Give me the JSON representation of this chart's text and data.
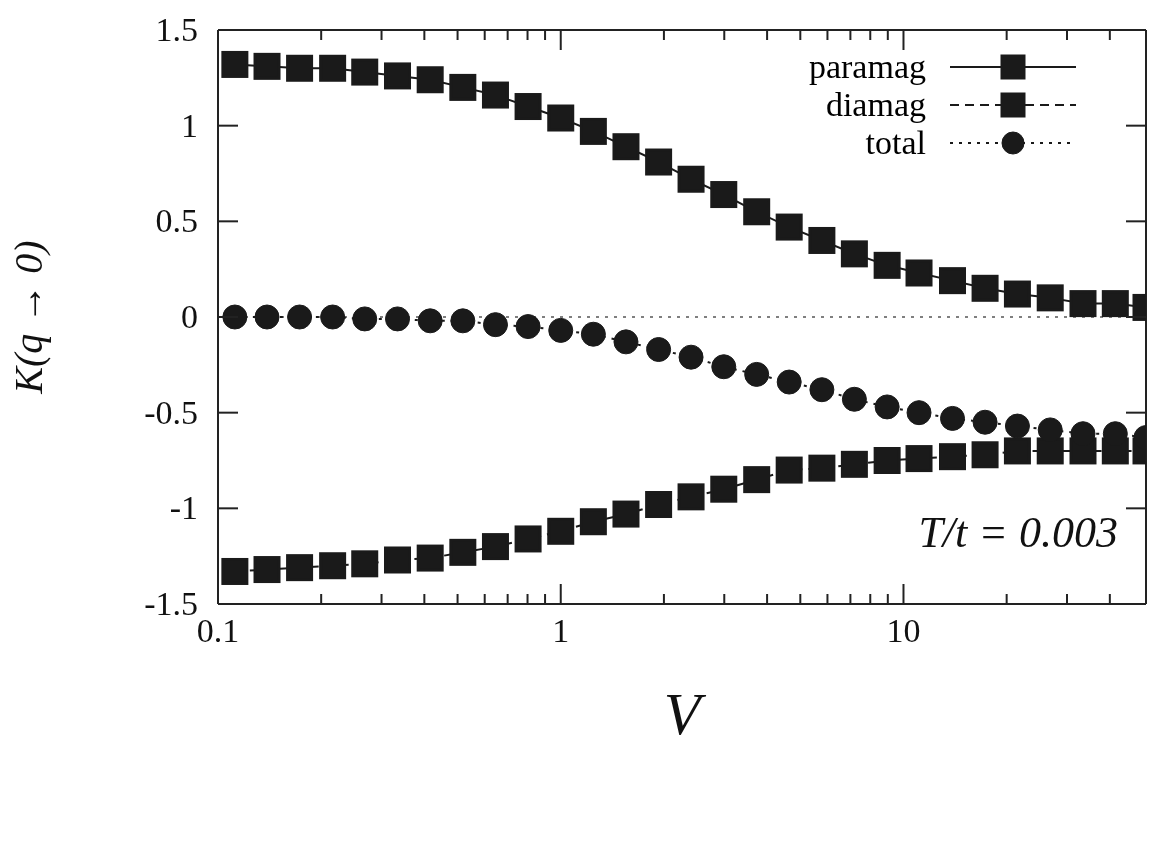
{
  "chart_data": {
    "type": "line",
    "xlabel": "V",
    "ylabel": "K(q → 0)",
    "annotations": [
      "T/t = 0.003"
    ],
    "x": [
      0.112,
      0.139,
      0.173,
      0.216,
      0.268,
      0.334,
      0.416,
      0.518,
      0.645,
      0.803,
      1,
      1.245,
      1.55,
      1.93,
      2.4,
      2.99,
      3.73,
      4.64,
      5.78,
      7.19,
      8.96,
      11.1,
      13.9,
      17.3,
      21.5,
      26.8,
      33.4,
      41.5,
      51
    ],
    "series": [
      {
        "name": "paramag",
        "color": "#1a1a1a",
        "marker": "square",
        "line_style": "solid",
        "values": [
          1.32,
          1.31,
          1.3,
          1.3,
          1.28,
          1.26,
          1.24,
          1.2,
          1.16,
          1.1,
          1.04,
          0.97,
          0.89,
          0.81,
          0.72,
          0.64,
          0.55,
          0.47,
          0.4,
          0.33,
          0.27,
          0.23,
          0.19,
          0.15,
          0.12,
          0.1,
          0.07,
          0.07,
          0.05
        ]
      },
      {
        "name": "diamag",
        "color": "#1a1a1a",
        "marker": "square",
        "line_style": "dashed",
        "values": [
          -1.33,
          -1.32,
          -1.31,
          -1.3,
          -1.29,
          -1.27,
          -1.26,
          -1.23,
          -1.2,
          -1.16,
          -1.12,
          -1.07,
          -1.03,
          -0.98,
          -0.94,
          -0.9,
          -0.85,
          -0.8,
          -0.79,
          -0.77,
          -0.75,
          -0.74,
          -0.73,
          -0.72,
          -0.7,
          -0.7,
          -0.7,
          -0.7,
          -0.7
        ]
      },
      {
        "name": "total",
        "color": "#1a1a1a",
        "marker": "circle",
        "line_style": "dotted",
        "values": [
          0,
          0,
          0,
          0,
          -0.01,
          -0.01,
          -0.02,
          -0.02,
          -0.04,
          -0.05,
          -0.07,
          -0.09,
          -0.13,
          -0.17,
          -0.21,
          -0.26,
          -0.3,
          -0.34,
          -0.38,
          -0.43,
          -0.47,
          -0.5,
          -0.53,
          -0.55,
          -0.57,
          -0.59,
          -0.61,
          -0.61,
          -0.63
        ]
      }
    ],
    "xlim": [
      0.1,
      51
    ],
    "log": "x",
    "xticks": [
      0.1,
      {
        "value": 0.2,
        "label": null
      },
      {
        "value": 0.3,
        "label": null
      },
      {
        "value": 0.4,
        "label": null
      },
      {
        "value": 0.5,
        "label": null
      },
      {
        "value": 0.6,
        "label": null
      },
      {
        "value": 0.7,
        "label": null
      },
      {
        "value": 0.8,
        "label": null
      },
      {
        "value": 0.9,
        "label": null
      },
      1,
      {
        "value": 2,
        "label": null
      },
      {
        "value": 3,
        "label": null
      },
      {
        "value": 4,
        "label": null
      },
      {
        "value": 5,
        "label": null
      },
      {
        "value": 6,
        "label": null
      },
      {
        "value": 7,
        "label": null
      },
      {
        "value": 8,
        "label": null
      },
      {
        "value": 9,
        "label": null
      },
      10,
      {
        "value": 20,
        "label": null
      },
      {
        "value": 30,
        "label": null
      },
      {
        "value": 40,
        "label": null
      }
    ],
    "ylim": [
      -1.5,
      1.5
    ],
    "yticks": [
      -1.5,
      -1,
      -0.5,
      0,
      0.5,
      1,
      1.5
    ],
    "ref_lines": [
      {
        "axis": "y",
        "value": 0,
        "line_style": "dotted",
        "color": "#555555"
      }
    ],
    "legend": "top right"
  }
}
